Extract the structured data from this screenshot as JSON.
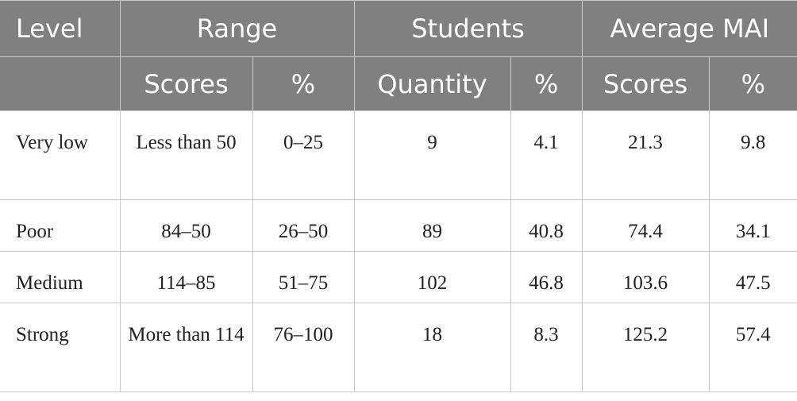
{
  "table": {
    "header_top": [
      "Level",
      "Range",
      "Students",
      "Average MAI"
    ],
    "header_sub": [
      "Scores",
      "%",
      "Quantity",
      "%",
      "Scores",
      "%"
    ],
    "rows": [
      [
        "Very low",
        "Less than 50",
        "0–25",
        9,
        4.1,
        21.3,
        9.8
      ],
      [
        "Poor",
        "84–50",
        "26–50",
        89,
        40.8,
        74.4,
        34.1
      ],
      [
        "Medium",
        "114–85",
        "51–75",
        102,
        46.8,
        103.6,
        47.5
      ],
      [
        "Strong",
        "More than 114",
        "76–100",
        18,
        8.3,
        125.2,
        57.4
      ]
    ]
  }
}
